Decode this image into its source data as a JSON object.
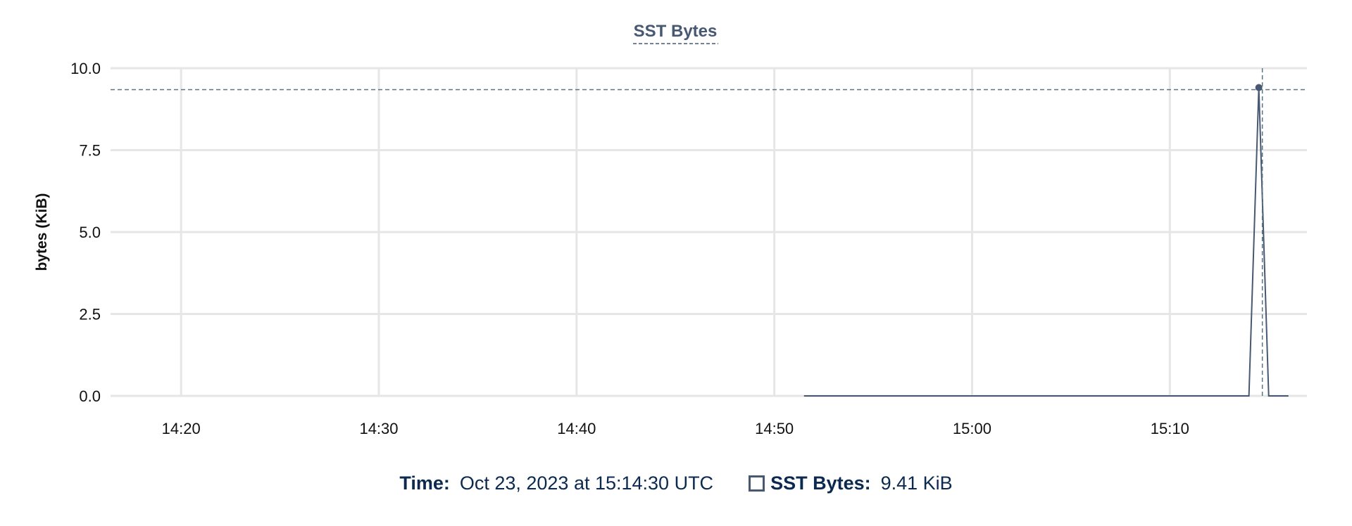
{
  "chart_data": {
    "type": "line",
    "title": "SST Bytes",
    "ylabel": "bytes (KiB)",
    "xlabel": "",
    "ylim": [
      0,
      10
    ],
    "yticks": [
      "0.0",
      "2.5",
      "5.0",
      "7.5",
      "10.0"
    ],
    "xlim": [
      "14:16:26",
      "15:16:56"
    ],
    "xticks": [
      "14:20",
      "14:30",
      "14:40",
      "14:50",
      "15:00",
      "15:10"
    ],
    "grid": true,
    "series": [
      {
        "name": "SST Bytes",
        "color": "#475872",
        "points": [
          [
            "14:51:30",
            0
          ],
          [
            "15:14:00",
            0
          ],
          [
            "15:14:30",
            9.41
          ],
          [
            "15:15:00",
            0
          ],
          [
            "15:16:00",
            0
          ]
        ]
      }
    ],
    "hover": {
      "time": "15:14:30",
      "value": 9.41
    }
  },
  "legend": {
    "time_label": "Time:",
    "time_value": "Oct 23, 2023 at 15:14:30 UTC",
    "series_label": "SST Bytes:",
    "series_value": "9.41 KiB"
  }
}
